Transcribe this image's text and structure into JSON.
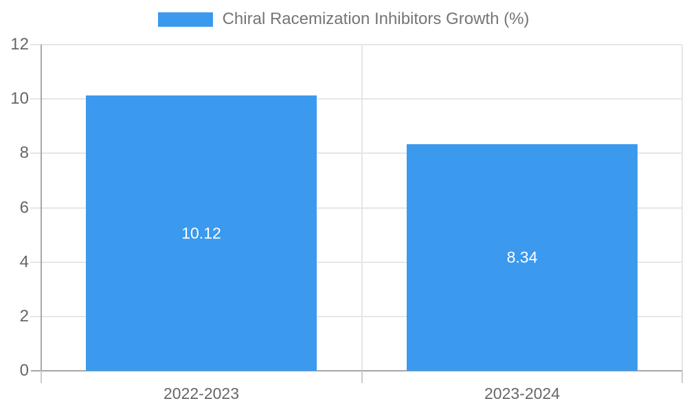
{
  "chart_data": {
    "type": "bar",
    "title": "Chiral Racemization Inhibitors Growth (%)",
    "categories": [
      "2022-2023",
      "2023-2024"
    ],
    "values": [
      10.12,
      8.34
    ],
    "value_labels": [
      "10.12",
      "8.34"
    ],
    "xlabel": "",
    "ylabel": "",
    "ylim": [
      0,
      12
    ],
    "yticks": [
      0,
      2,
      4,
      6,
      8,
      10,
      12
    ],
    "grid": true,
    "legend_position": "top-center",
    "colors": {
      "bar": "#3B99EE",
      "value_label": "#FFFFFF",
      "axis_line": "#A6A6A6",
      "bottom_tick": "#CCCCCC",
      "gridline": "#E6E6E6",
      "tick_label": "#666666",
      "legend_text": "#757575",
      "background": "#FFFFFF"
    }
  }
}
